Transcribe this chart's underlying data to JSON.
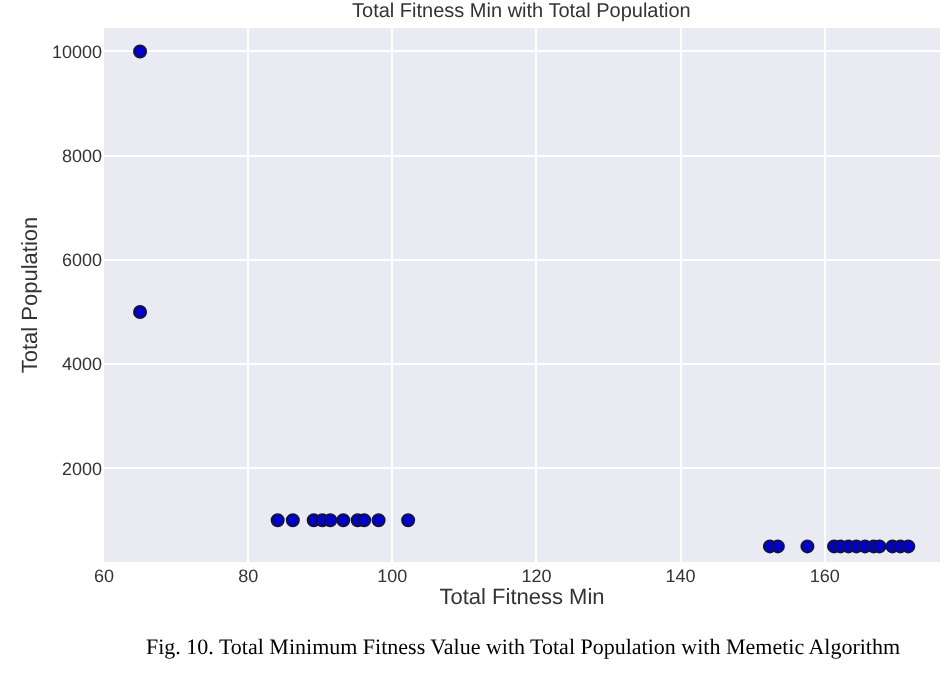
{
  "chart_data": {
    "type": "scatter",
    "title": "Total Fitness Min with Total Population",
    "xlabel": "Total Fitness Min",
    "ylabel": "Total Population",
    "x": [
      65,
      65,
      84.1,
      86.2,
      89.1,
      90.3,
      91.4,
      93.2,
      95.2,
      96.1,
      98.1,
      102.2,
      152.4,
      153.5,
      157.6,
      161.3,
      162.2,
      163.3,
      164.4,
      165.6,
      166.8,
      167.6,
      169.4,
      170.5,
      171.6
    ],
    "series": [
      {
        "color": "#0000cc",
        "values": [
          10000,
          5000,
          1000,
          1000,
          1000,
          1000,
          1000,
          1000,
          1000,
          1000,
          1000,
          1000,
          500,
          500,
          500,
          500,
          500,
          500,
          500,
          500,
          500,
          500,
          500,
          500,
          500
        ]
      }
    ],
    "xlim": [
      60,
      176
    ],
    "ylim": [
      200,
      10450
    ],
    "xticks": [
      60,
      80,
      100,
      120,
      140,
      160
    ],
    "yticks": [
      2000,
      4000,
      6000,
      8000,
      10000
    ],
    "grid": true,
    "legend": false,
    "marker": "circle",
    "annotations": [
      "Fig. 10. Total Minimum Fitness Value with Total Population with Memetic Algorithm"
    ]
  }
}
